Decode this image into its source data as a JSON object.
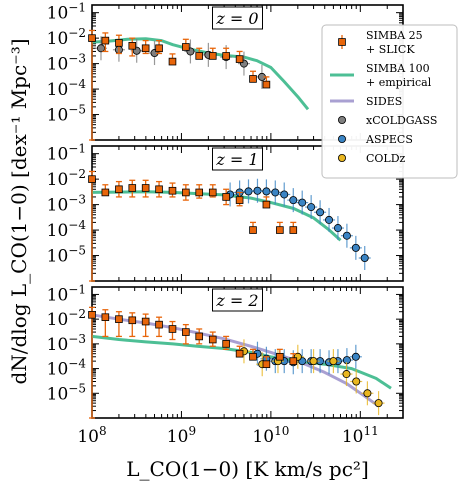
{
  "chart_data": {
    "type": "scatter",
    "xlabel": "L_CO(1−0) [K km/s pc²]",
    "ylabel": "dN/dlog L_CO(1−0) [dex⁻¹ Mpc⁻³]",
    "xscale": "log",
    "yscale": "log",
    "xlim": [
      100000000.0,
      300000000000.0
    ],
    "ylim": [
      1e-06,
      0.2
    ],
    "x_tick_labels": [
      "10^8",
      "10^9",
      "10^10",
      "10^11"
    ],
    "y_tick_labels": [
      "10^-5",
      "10^-4",
      "10^-3",
      "10^-2",
      "10^-1"
    ],
    "legend": {
      "placement": "right",
      "entries": [
        {
          "lines": [
            "SIMBA 25",
            "+ SLICK"
          ],
          "marker": "square",
          "color": "#E8650A"
        },
        {
          "lines": [
            "SIMBA 100",
            "+ empirical"
          ],
          "marker": "line",
          "color": "#4DBF95"
        },
        {
          "lines": [
            "SIDES"
          ],
          "marker": "line",
          "color": "#A9A0D2"
        },
        {
          "lines": [
            "xCOLDGASS"
          ],
          "marker": "circle",
          "color": "#7F7F7F"
        },
        {
          "lines": [
            "ASPECS"
          ],
          "marker": "circle",
          "color": "#3A84C4"
        },
        {
          "lines": [
            "COLDz"
          ],
          "marker": "circle",
          "color": "#E9B620"
        }
      ]
    },
    "colors": {
      "simba25": "#E8650A",
      "simba100": "#4DBF95",
      "sides": "#A9A0D2",
      "xcoldgass": "#7F7F7F",
      "aspecs": "#3A84C4",
      "coldz": "#E9B620"
    },
    "panels": [
      {
        "label": "z = 0",
        "simba25": [
          {
            "x": 100000000.0,
            "y": 0.01,
            "lo": 0.01,
            "hi": 0.01
          },
          {
            "x": 141000000.0,
            "y": 0.008,
            "lo": 0.005,
            "hi": 0.008
          },
          {
            "x": 200000000.0,
            "y": 0.0065,
            "lo": 0.004,
            "hi": 0.0065
          },
          {
            "x": 282000000.0,
            "y": 0.005,
            "lo": 0.003,
            "hi": 0.005
          },
          {
            "x": 398000000.0,
            "y": 0.004,
            "lo": 0.0015,
            "hi": 0.004
          },
          {
            "x": 562000000.0,
            "y": 0.004,
            "lo": 0.0015,
            "hi": 0.004
          },
          {
            "x": 794000000.0,
            "y": 0.0012,
            "lo": 3e-06,
            "hi": 0.0012
          },
          {
            "x": 1120000000.0,
            "y": 0.0045,
            "lo": 3e-06,
            "hi": 0.0045
          },
          {
            "x": 1580000000.0,
            "y": 0.002,
            "lo": 3e-06,
            "hi": 0.002
          },
          {
            "x": 2240000000.0,
            "y": 0.002,
            "lo": 3e-06,
            "hi": 0.002
          },
          {
            "x": 3160000000.0,
            "y": 0.002,
            "lo": 0.00015,
            "hi": 0.002
          },
          {
            "x": 4470000000.0,
            "y": 0.0015,
            "lo": 3e-06,
            "hi": 0.0015
          },
          {
            "x": 6310000000.0,
            "y": 0.00025,
            "lo": 3e-06,
            "hi": 0.00025
          },
          {
            "x": 8910000000.0,
            "y": 0.00015,
            "lo": 3e-06,
            "hi": 0.00015
          }
        ],
        "simba100": [
          [
            100000000.0,
            0.007
          ],
          [
            150000000.0,
            0.0075
          ],
          [
            250000000.0,
            0.009
          ],
          [
            400000000.0,
            0.0095
          ],
          [
            600000000.0,
            0.008
          ],
          [
            800000000.0,
            0.0055
          ],
          [
            1200000000.0,
            0.0038
          ],
          [
            2000000000.0,
            0.0026
          ],
          [
            3000000000.0,
            0.0021
          ],
          [
            5000000000.0,
            0.0018
          ],
          [
            7000000000.0,
            0.0013
          ],
          [
            10000000000.0,
            0.0007
          ],
          [
            14000000000.0,
            0.0002
          ],
          [
            20000000000.0,
            5e-05
          ],
          [
            26000000000.0,
            1.6e-05
          ]
        ],
        "sides": [],
        "xcoldgass": [
          [
            126000000.0,
            0.004
          ],
          [
            200000000.0,
            0.0035
          ],
          [
            316000000.0,
            0.0032
          ],
          [
            500000000.0,
            0.0026
          ],
          [
            1260000000.0,
            0.003
          ],
          [
            2000000000.0,
            0.0022
          ],
          [
            3160000000.0,
            0.0018
          ],
          [
            5000000000.0,
            0.001
          ],
          [
            7940000000.0,
            0.0003
          ]
        ],
        "aspecs": [],
        "coldz": []
      },
      {
        "label": "z = 1",
        "simba25": [
          {
            "x": 100000000.0,
            "y": 0.01,
            "lo": 0.01,
            "hi": 0.01
          },
          {
            "x": 141000000.0,
            "y": 0.003,
            "lo": 7e-05,
            "hi": 0.003
          },
          {
            "x": 200000000.0,
            "y": 0.004,
            "lo": 0.002,
            "hi": 0.004
          },
          {
            "x": 282000000.0,
            "y": 0.0045,
            "lo": 0.0025,
            "hi": 0.0045
          },
          {
            "x": 398000000.0,
            "y": 0.0045,
            "lo": 0.0025,
            "hi": 0.0045
          },
          {
            "x": 562000000.0,
            "y": 0.004,
            "lo": 0.002,
            "hi": 0.004
          },
          {
            "x": 794000000.0,
            "y": 0.0035,
            "lo": 0.0015,
            "hi": 0.0035
          },
          {
            "x": 1120000000.0,
            "y": 0.003,
            "lo": 0.0015,
            "hi": 0.003
          },
          {
            "x": 1580000000.0,
            "y": 0.003,
            "lo": 0.0012,
            "hi": 0.003
          },
          {
            "x": 2240000000.0,
            "y": 0.003,
            "lo": 0.001,
            "hi": 0.003
          },
          {
            "x": 3160000000.0,
            "y": 0.002,
            "lo": 0.001,
            "hi": 0.002
          },
          {
            "x": 4470000000.0,
            "y": 0.0015,
            "lo": 0.0006,
            "hi": 0.0015
          },
          {
            "x": 6310000000.0,
            "y": 0.0001,
            "lo": 3e-06,
            "hi": 0.0001
          },
          {
            "x": 8910000000.0,
            "y": 0.001,
            "lo": 3e-06,
            "hi": 0.001
          },
          {
            "x": 12600000000.0,
            "y": 0.0001,
            "lo": 3e-06,
            "hi": 0.0001
          },
          {
            "x": 17800000000.0,
            "y": 0.0001,
            "lo": 3e-06,
            "hi": 0.0001
          }
        ],
        "simba100": [
          [
            100000000.0,
            0.003
          ],
          [
            200000000.0,
            0.0031
          ],
          [
            400000000.0,
            0.0032
          ],
          [
            800000000.0,
            0.003
          ],
          [
            1500000000.0,
            0.0027
          ],
          [
            3000000000.0,
            0.0024
          ],
          [
            6000000000.0,
            0.0018
          ],
          [
            10000000000.0,
            0.0012
          ],
          [
            18000000000.0,
            0.0007
          ],
          [
            30000000000.0,
            0.0003
          ],
          [
            45000000000.0,
            0.0001
          ],
          [
            60000000000.0,
            4e-05
          ]
        ],
        "sides": [],
        "xcoldgass": [],
        "aspecs": [
          [
            3500000000.0,
            0.0025
          ],
          [
            4470000000.0,
            0.003
          ],
          [
            5620000000.0,
            0.0033
          ],
          [
            7080000000.0,
            0.0035
          ],
          [
            8910000000.0,
            0.0033
          ],
          [
            11200000000.0,
            0.003
          ],
          [
            14100000000.0,
            0.0025
          ],
          [
            17800000000.0,
            0.0015
          ],
          [
            22400000000.0,
            0.0012
          ],
          [
            28200000000.0,
            0.0008
          ],
          [
            35500000000.0,
            0.0005
          ],
          [
            44700000000.0,
            0.00025
          ],
          [
            56200000000.0,
            0.00012
          ],
          [
            70800000000.0,
            6e-05
          ],
          [
            89100000000.0,
            2e-05
          ],
          [
            112000000000.0,
            8e-06
          ]
        ],
        "coldz": []
      },
      {
        "label": "z = 2",
        "simba25": [
          {
            "x": 100000000.0,
            "y": 0.015,
            "lo": 0.015,
            "hi": 0.015
          },
          {
            "x": 141000000.0,
            "y": 0.012,
            "lo": 0.01,
            "hi": 0.012
          },
          {
            "x": 200000000.0,
            "y": 0.01,
            "lo": 0.008,
            "hi": 0.01
          },
          {
            "x": 282000000.0,
            "y": 0.009,
            "lo": 0.007,
            "hi": 0.009
          },
          {
            "x": 398000000.0,
            "y": 0.008,
            "lo": 0.006,
            "hi": 0.008
          },
          {
            "x": 562000000.0,
            "y": 0.006,
            "lo": 0.004,
            "hi": 0.006
          },
          {
            "x": 794000000.0,
            "y": 0.004,
            "lo": 0.0025,
            "hi": 0.004
          },
          {
            "x": 1120000000.0,
            "y": 0.003,
            "lo": 0.002,
            "hi": 0.003
          },
          {
            "x": 1580000000.0,
            "y": 0.002,
            "lo": 0.001,
            "hi": 0.002
          },
          {
            "x": 2240000000.0,
            "y": 0.0015,
            "lo": 0.0007,
            "hi": 0.0015
          },
          {
            "x": 3160000000.0,
            "y": 0.001,
            "lo": 0.0004,
            "hi": 0.001
          },
          {
            "x": 4470000000.0,
            "y": 0.0004,
            "lo": 0.0001,
            "hi": 0.0004
          },
          {
            "x": 6310000000.0,
            "y": 0.0003,
            "lo": 5e-05,
            "hi": 0.0003
          },
          {
            "x": 8910000000.0,
            "y": 0.00015,
            "lo": 3e-06,
            "hi": 0.00015
          },
          {
            "x": 12600000000.0,
            "y": 0.0003,
            "lo": 3e-06,
            "hi": 0.0003
          },
          {
            "x": 17800000000.0,
            "y": 0.0002,
            "lo": 3e-06,
            "hi": 0.0002
          }
        ],
        "simba100": [
          [
            100000000.0,
            0.002
          ],
          [
            200000000.0,
            0.0015
          ],
          [
            400000000.0,
            0.0012
          ],
          [
            800000000.0,
            0.001
          ],
          [
            1500000000.0,
            0.0008
          ],
          [
            3000000000.0,
            0.00065
          ],
          [
            6000000000.0,
            0.00045
          ],
          [
            10000000000.0,
            0.0003
          ],
          [
            20000000000.0,
            0.0002
          ],
          [
            40000000000.0,
            0.00015
          ],
          [
            80000000000.0,
            0.0001
          ],
          [
            150000000000.0,
            4e-05
          ],
          [
            220000000000.0,
            1.6e-05
          ]
        ],
        "sides": [
          [
            100000000.0,
            0.015
          ],
          [
            200000000.0,
            0.01
          ],
          [
            400000000.0,
            0.007
          ],
          [
            800000000.0,
            0.0045
          ],
          [
            1500000000.0,
            0.0028
          ],
          [
            3000000000.0,
            0.0016
          ],
          [
            6000000000.0,
            0.0008
          ],
          [
            10000000000.0,
            0.00045
          ],
          [
            20000000000.0,
            0.0002
          ],
          [
            40000000000.0,
            7e-05
          ],
          [
            70000000000.0,
            2.5e-05
          ],
          [
            110000000000.0,
            8e-06
          ],
          [
            160000000000.0,
            3e-06
          ]
        ],
        "xcoldgass": [],
        "aspecs": [
          [
            7080000000.0,
            0.0004
          ],
          [
            8910000000.0,
            0.00025
          ],
          [
            11200000000.0,
            0.0002
          ],
          [
            14100000000.0,
            0.0002
          ],
          [
            17800000000.0,
            0.00018
          ],
          [
            22400000000.0,
            0.0002
          ],
          [
            28200000000.0,
            0.0002
          ],
          [
            35500000000.0,
            0.0002
          ],
          [
            44700000000.0,
            0.00018
          ],
          [
            56200000000.0,
            0.0002
          ],
          [
            70800000000.0,
            0.00022
          ],
          [
            89100000000.0,
            0.0003
          ]
        ],
        "coldz": [
          [
            5000000000.0,
            0.0005
          ],
          [
            8000000000.0,
            0.00015
          ],
          [
            12000000000.0,
            0.0002
          ],
          [
            20000000000.0,
            0.0003
          ],
          [
            30000000000.0,
            0.0002
          ],
          [
            50000000000.0,
            0.0002
          ],
          [
            70000000000.0,
            6e-05
          ],
          [
            90000000000.0,
            3e-05
          ],
          [
            120000000000.0,
            1e-05
          ],
          [
            160000000000.0,
            4e-06
          ]
        ]
      }
    ]
  }
}
